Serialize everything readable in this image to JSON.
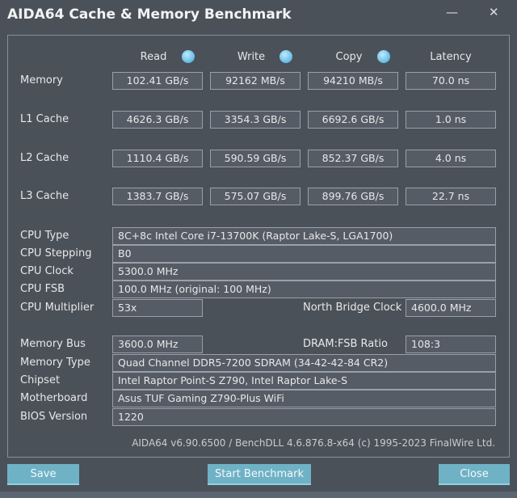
{
  "window": {
    "title": "AIDA64 Cache & Memory Benchmark",
    "minimize": "—",
    "close": "✕"
  },
  "columns": [
    "Read",
    "Write",
    "Copy",
    "Latency"
  ],
  "icons": {
    "info": "info-bubble-icon"
  },
  "bench_rows": [
    {
      "label": "Memory",
      "values": [
        "102.41 GB/s",
        "92162 MB/s",
        "94210 MB/s",
        "70.0 ns"
      ]
    },
    {
      "label": "L1 Cache",
      "values": [
        "4626.3 GB/s",
        "3354.3 GB/s",
        "6692.6 GB/s",
        "1.0 ns"
      ]
    },
    {
      "label": "L2 Cache",
      "values": [
        "1110.4 GB/s",
        "590.59 GB/s",
        "852.37 GB/s",
        "4.0 ns"
      ]
    },
    {
      "label": "L3 Cache",
      "values": [
        "1383.7 GB/s",
        "575.07 GB/s",
        "899.76 GB/s",
        "22.7 ns"
      ]
    }
  ],
  "cpu": {
    "type_label": "CPU Type",
    "type": "8C+8c Intel Core i7-13700K  (Raptor Lake-S, LGA1700)",
    "stepping_label": "CPU Stepping",
    "stepping": "B0",
    "clock_label": "CPU Clock",
    "clock": "5300.0 MHz",
    "fsb_label": "CPU FSB",
    "fsb": "100.0 MHz  (original: 100 MHz)",
    "multiplier_label": "CPU Multiplier",
    "multiplier": "53x",
    "nb_clock_label": "North Bridge Clock",
    "nb_clock": "4600.0 MHz"
  },
  "memory": {
    "bus_label": "Memory Bus",
    "bus": "3600.0 MHz",
    "ratio_label": "DRAM:FSB Ratio",
    "ratio": "108:3",
    "type_label": "Memory Type",
    "type": "Quad Channel DDR5-7200 SDRAM  (34-42-42-84 CR2)",
    "chipset_label": "Chipset",
    "chipset": "Intel Raptor Point-S Z790, Intel Raptor Lake-S",
    "motherboard_label": "Motherboard",
    "motherboard": "Asus TUF Gaming Z790-Plus WiFi",
    "bios_label": "BIOS Version",
    "bios": "1220"
  },
  "footer": "AIDA64 v6.90.6500 / BenchDLL 4.6.876.8-x64  (c) 1995-2023 FinalWire Ltd.",
  "buttons": {
    "save": "Save",
    "start": "Start Benchmark",
    "close": "Close"
  }
}
